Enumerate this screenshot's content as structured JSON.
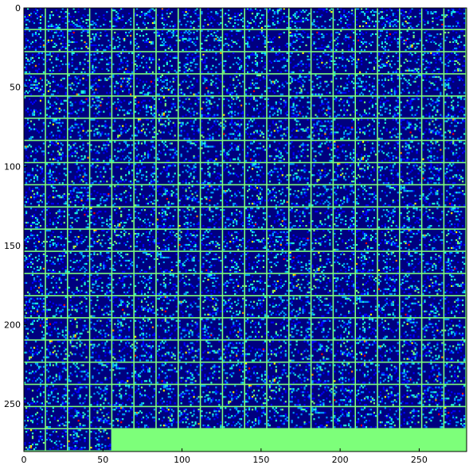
{
  "chart_data": {
    "type": "heatmap",
    "title": "",
    "xlabel": "",
    "ylabel": "",
    "description_kind": "tiled activation / filter mosaic",
    "xlim": [
      0,
      280
    ],
    "ylim": [
      280,
      0
    ],
    "tile_size": 13,
    "tile_stride": 14,
    "grid_cols": 20,
    "grid_rows": 20,
    "filled_tiles": 384,
    "empty_region": {
      "rows_from": 19,
      "cols_from": 4,
      "cols_to": 19
    },
    "colormap": [
      "#00007f",
      "#0000ff",
      "#00a0ff",
      "#20ffd7",
      "#7dff7a",
      "#ffff00",
      "#ff8c00",
      "#ff0000"
    ],
    "separator_color": "#7dff7a",
    "background_value_color": "#00007f",
    "xticks": [
      0,
      50,
      100,
      150,
      200,
      250
    ],
    "yticks": [
      0,
      50,
      100,
      150,
      200,
      250
    ],
    "xtick_labels": [
      "0",
      "50",
      "100",
      "150",
      "200",
      "250"
    ],
    "ytick_labels": [
      "0",
      "50",
      "100",
      "150",
      "200",
      "250"
    ]
  }
}
